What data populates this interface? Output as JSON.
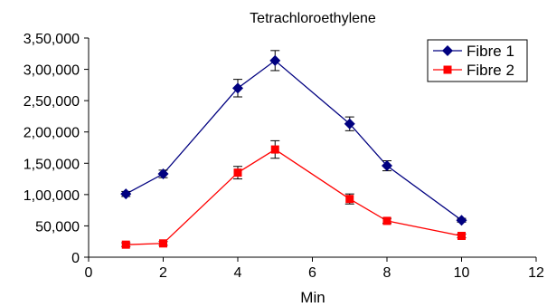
{
  "chart_data": {
    "type": "line",
    "title": "Tetrachloroethylene",
    "xlabel": "Min",
    "ylabel": "",
    "xlim": [
      0,
      12
    ],
    "ylim": [
      0,
      350000
    ],
    "x_ticks": [
      0,
      2,
      4,
      6,
      8,
      10,
      12
    ],
    "x_tick_labels": [
      "0",
      "2",
      "4",
      "6",
      "8",
      "10",
      "12"
    ],
    "y_ticks": [
      0,
      50000,
      100000,
      150000,
      200000,
      250000,
      300000,
      350000
    ],
    "y_tick_labels": [
      "0",
      "50,000",
      "1,00,000",
      "1,50,000",
      "2,00,000",
      "2,50,000",
      "3,00,000",
      "3,50,000"
    ],
    "grid": false,
    "legend_position": "top-right",
    "series": [
      {
        "name": "Fibre 1",
        "color": "#000080",
        "marker": "diamond",
        "x": [
          1,
          2,
          4,
          5,
          7,
          8,
          10
        ],
        "y": [
          101000,
          133000,
          270000,
          314000,
          213000,
          146000,
          59000
        ],
        "error": [
          4000,
          6000,
          14000,
          16000,
          11000,
          8000,
          3000
        ]
      },
      {
        "name": "Fibre 2",
        "color": "#ff0000",
        "marker": "square",
        "x": [
          1,
          2,
          4,
          5,
          7,
          8,
          10
        ],
        "y": [
          20000,
          22000,
          135000,
          172000,
          93000,
          58000,
          34000
        ],
        "error": [
          3000,
          3000,
          10000,
          14000,
          8000,
          4000,
          3000
        ]
      }
    ]
  }
}
